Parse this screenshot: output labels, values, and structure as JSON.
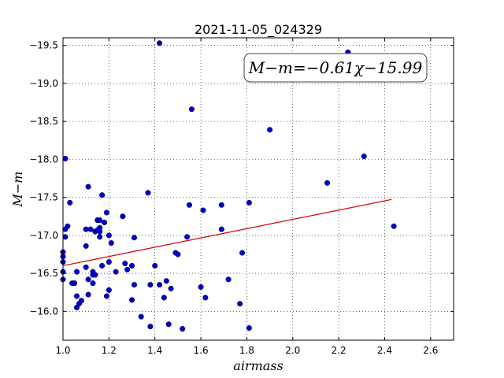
{
  "chart_data": {
    "type": "scatter",
    "title": "2021-11-05_024329",
    "xlabel": "airmass",
    "ylabel": "M−m",
    "xlim": [
      1.0,
      2.7
    ],
    "ylim": [
      -19.6,
      -15.62
    ],
    "y_inverted": true,
    "grid": true,
    "x_ticks": [
      "1.0",
      "1.2",
      "1.4",
      "1.6",
      "1.8",
      "2.0",
      "2.2",
      "2.4",
      "2.6"
    ],
    "y_ticks": [
      "−16.0",
      "−16.5",
      "−17.0",
      "−17.5",
      "−18.0",
      "−18.5",
      "−19.0",
      "−19.5"
    ],
    "annotation": "M−m=−0.61χ−15.99",
    "fit_line": {
      "slope": -0.61,
      "intercept": -15.99,
      "x_range": [
        1.0,
        2.43
      ],
      "color": "#d00000"
    },
    "points_color": "#0000cc",
    "points": [
      [
        1.0,
        -16.42
      ],
      [
        1.0,
        -16.52
      ],
      [
        1.0,
        -16.65
      ],
      [
        1.0,
        -16.72
      ],
      [
        1.0,
        -16.78
      ],
      [
        1.01,
        -18.01
      ],
      [
        1.01,
        -16.98
      ],
      [
        1.01,
        -17.08
      ],
      [
        1.02,
        -17.12
      ],
      [
        1.03,
        -17.43
      ],
      [
        1.04,
        -16.37
      ],
      [
        1.05,
        -16.37
      ],
      [
        1.06,
        -16.2
      ],
      [
        1.06,
        -16.52
      ],
      [
        1.06,
        -16.05
      ],
      [
        1.07,
        -16.1
      ],
      [
        1.08,
        -16.14
      ],
      [
        1.1,
        -16.58
      ],
      [
        1.1,
        -16.86
      ],
      [
        1.1,
        -17.08
      ],
      [
        1.11,
        -16.22
      ],
      [
        1.11,
        -16.42
      ],
      [
        1.11,
        -17.64
      ],
      [
        1.12,
        -17.08
      ],
      [
        1.13,
        -16.37
      ],
      [
        1.13,
        -16.48
      ],
      [
        1.13,
        -16.52
      ],
      [
        1.14,
        -17.05
      ],
      [
        1.14,
        -16.48
      ],
      [
        1.15,
        -17.2
      ],
      [
        1.15,
        -17.07
      ],
      [
        1.16,
        -17.05
      ],
      [
        1.16,
        -17.1
      ],
      [
        1.16,
        -16.98
      ],
      [
        1.16,
        -17.2
      ],
      [
        1.17,
        -16.6
      ],
      [
        1.17,
        -17.53
      ],
      [
        1.18,
        -17.17
      ],
      [
        1.19,
        -17.3
      ],
      [
        1.19,
        -16.2
      ],
      [
        1.2,
        -16.28
      ],
      [
        1.2,
        -16.65
      ],
      [
        1.2,
        -17.0
      ],
      [
        1.21,
        -16.9
      ],
      [
        1.23,
        -16.52
      ],
      [
        1.26,
        -17.25
      ],
      [
        1.27,
        -16.63
      ],
      [
        1.28,
        -16.55
      ],
      [
        1.3,
        -16.15
      ],
      [
        1.3,
        -16.6
      ],
      [
        1.31,
        -16.35
      ],
      [
        1.31,
        -16.97
      ],
      [
        1.34,
        -15.93
      ],
      [
        1.37,
        -17.56
      ],
      [
        1.38,
        -15.8
      ],
      [
        1.38,
        -16.35
      ],
      [
        1.4,
        -16.6
      ],
      [
        1.42,
        -16.35
      ],
      [
        1.42,
        -19.53
      ],
      [
        1.44,
        -16.18
      ],
      [
        1.45,
        -16.4
      ],
      [
        1.46,
        -15.83
      ],
      [
        1.47,
        -16.3
      ],
      [
        1.49,
        -16.77
      ],
      [
        1.5,
        -16.75
      ],
      [
        1.52,
        -15.77
      ],
      [
        1.54,
        -16.98
      ],
      [
        1.55,
        -17.4
      ],
      [
        1.56,
        -18.66
      ],
      [
        1.6,
        -16.32
      ],
      [
        1.61,
        -17.33
      ],
      [
        1.62,
        -16.18
      ],
      [
        1.69,
        -17.4
      ],
      [
        1.69,
        -17.08
      ],
      [
        1.72,
        -16.42
      ],
      [
        1.77,
        -16.1
      ],
      [
        1.78,
        -16.77
      ],
      [
        1.81,
        -15.78
      ],
      [
        1.81,
        -17.43
      ],
      [
        1.9,
        -18.39
      ],
      [
        2.15,
        -17.69
      ],
      [
        2.24,
        -19.41
      ],
      [
        2.31,
        -18.04
      ],
      [
        2.44,
        -17.12
      ]
    ]
  }
}
